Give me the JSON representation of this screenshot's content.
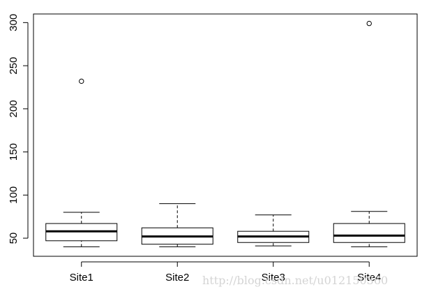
{
  "chart_data": {
    "type": "boxplot",
    "title": "",
    "xlabel": "",
    "ylabel": "",
    "categories": [
      "Site1",
      "Site2",
      "Site3",
      "Site4"
    ],
    "ylim": [
      29,
      310
    ],
    "yticks": [
      50,
      100,
      150,
      200,
      250,
      300
    ],
    "grid": false,
    "boxes": [
      {
        "name": "Site1",
        "min": 40,
        "q1": 47,
        "median": 58,
        "q3": 67,
        "max": 80,
        "outliers": [
          232
        ]
      },
      {
        "name": "Site2",
        "min": 40,
        "q1": 43,
        "median": 52,
        "q3": 62,
        "max": 90,
        "outliers": []
      },
      {
        "name": "Site3",
        "min": 41,
        "q1": 45,
        "median": 52,
        "q3": 58,
        "max": 77,
        "outliers": []
      },
      {
        "name": "Site4",
        "min": 40,
        "q1": 45,
        "median": 53,
        "q3": 67,
        "max": 81,
        "outliers": [
          299
        ]
      }
    ]
  },
  "watermark": "http://blog.csdn.net/u012150360",
  "colors": {
    "box_stroke": "#000000",
    "background": "#ffffff",
    "watermark": "#d4d4d4"
  }
}
